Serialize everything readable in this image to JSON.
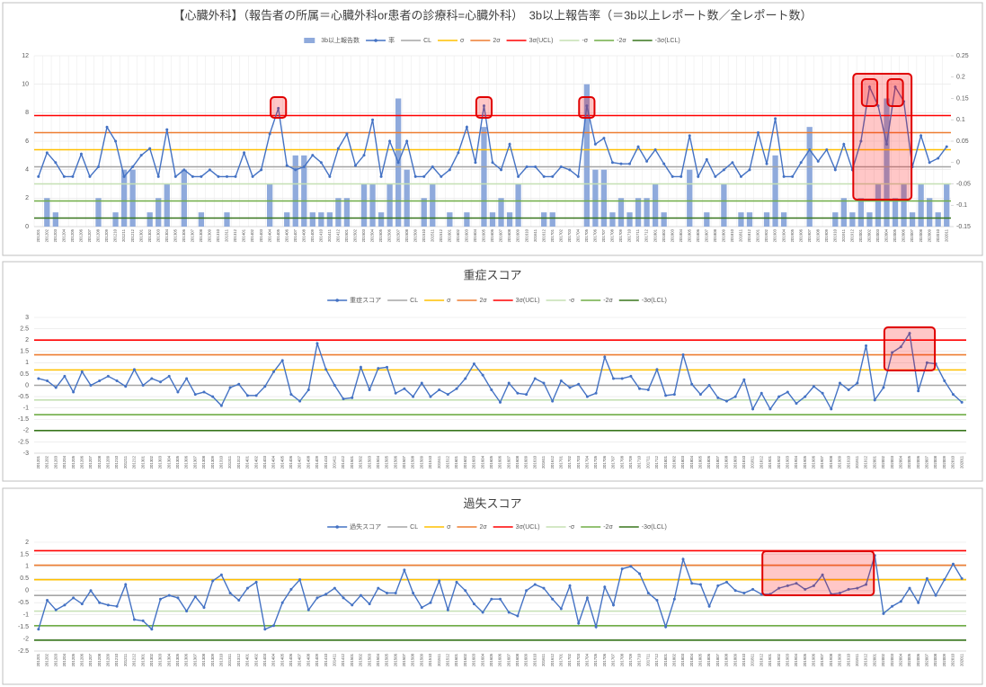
{
  "chart_data": [
    {
      "type": "bar-line",
      "title": "【心臓外科】（報告者の所属＝心臓外科or患者の診療科=心臓外科）　3b以上報告率（＝3b以上レポート数／全レポート数）",
      "categories": [
        "201201",
        "201202",
        "201203",
        "201204",
        "201205",
        "201206",
        "201207",
        "201208",
        "201209",
        "201210",
        "201211",
        "201212",
        "201301",
        "201302",
        "201303",
        "201304",
        "201305",
        "201306",
        "201307",
        "201308",
        "201309",
        "201310",
        "201311",
        "201312",
        "201401",
        "201402",
        "201403",
        "201404",
        "201405",
        "201406",
        "201407",
        "201408",
        "201409",
        "201410",
        "201411",
        "201412",
        "201501",
        "201502",
        "201503",
        "201504",
        "201505",
        "201506",
        "201507",
        "201508",
        "201509",
        "201510",
        "201511",
        "201512",
        "201601",
        "201602",
        "201603",
        "201604",
        "201605",
        "201606",
        "201607",
        "201608",
        "201609",
        "201610",
        "201611",
        "201612",
        "201701",
        "201702",
        "201703",
        "201704",
        "201705",
        "201706",
        "201707",
        "201708",
        "201709",
        "201710",
        "201711",
        "201712",
        "201801",
        "201802",
        "201803",
        "201804",
        "201805",
        "201806",
        "201807",
        "201808",
        "201809",
        "201810",
        "201811",
        "201812",
        "201901",
        "201902",
        "201903",
        "201904",
        "201905",
        "201906",
        "201907",
        "201908",
        "201909",
        "201910",
        "201911",
        "201912",
        "202001",
        "202002",
        "202003",
        "202004",
        "202005",
        "202006",
        "202007",
        "202008",
        "202009",
        "202010",
        "202011"
      ],
      "ylim": [
        0,
        12
      ],
      "yticks": [
        0,
        2,
        4,
        6,
        8,
        10,
        12
      ],
      "y2lim": [
        -0.15,
        0.25
      ],
      "y2ticks": [
        -0.15,
        -0.1,
        -0.05,
        0,
        0.05,
        0.1,
        0.15,
        0.2,
        0.25
      ],
      "grid": true,
      "vgrid": true,
      "series": [
        {
          "name": "3b以上報告数",
          "kind": "bar",
          "color": "#8faadc",
          "values": [
            0,
            2,
            1,
            0,
            0,
            0,
            0,
            2,
            0,
            1,
            4,
            4,
            0,
            1,
            2,
            3,
            0,
            4,
            0,
            1,
            0,
            0,
            1,
            0,
            0,
            0,
            0,
            3,
            0,
            1,
            5,
            5,
            1,
            1,
            1,
            2,
            2,
            0,
            3,
            3,
            1,
            3,
            9,
            4,
            0,
            2,
            3,
            0,
            1,
            0,
            1,
            0,
            7,
            1,
            2,
            1,
            3,
            0,
            0,
            1,
            1,
            0,
            0,
            0,
            10,
            4,
            4,
            1,
            2,
            1,
            2,
            2,
            3,
            1,
            0,
            0,
            4,
            0,
            1,
            0,
            3,
            0,
            1,
            1,
            0,
            1,
            5,
            1,
            0,
            0,
            7,
            0,
            0,
            1,
            2,
            1,
            2,
            1,
            3,
            9,
            2,
            3,
            1,
            3,
            2,
            1,
            3
          ]
        },
        {
          "name": "率",
          "kind": "line",
          "axis": "y2",
          "color": "#4472c4",
          "values": [
            -0.033,
            0.023,
            0,
            -0.033,
            -0.033,
            0.02,
            -0.033,
            -0.01,
            0.083,
            0.05,
            -0.033,
            -0.01,
            0.017,
            0.033,
            -0.033,
            0.077,
            -0.033,
            -0.017,
            -0.033,
            -0.033,
            -0.017,
            -0.033,
            -0.033,
            -0.033,
            0.023,
            -0.033,
            -0.017,
            0.067,
            0.127,
            -0.007,
            -0.017,
            -0.01,
            0.017,
            0,
            -0.033,
            0.033,
            0.067,
            -0.007,
            0.017,
            0.1,
            -0.033,
            0.05,
            0,
            0.05,
            -0.033,
            -0.033,
            -0.01,
            -0.033,
            -0.017,
            0.023,
            0.083,
            0,
            0.133,
            0,
            -0.017,
            0.043,
            -0.033,
            -0.01,
            -0.01,
            -0.033,
            -0.033,
            -0.01,
            -0.017,
            -0.033,
            0.133,
            0.043,
            0.057,
            0,
            -0.003,
            -0.003,
            0.037,
            0.003,
            0.03,
            -0.003,
            -0.033,
            -0.033,
            0.063,
            -0.033,
            0.007,
            -0.033,
            -0.017,
            0,
            -0.033,
            -0.017,
            0.07,
            -0.003,
            0.103,
            -0.033,
            -0.033,
            0,
            0.03,
            0.003,
            0.03,
            -0.017,
            0.043,
            -0.017,
            0.05,
            0.177,
            0.133,
            0.043,
            0.177,
            0.143,
            -0.01,
            0.063,
            0,
            0.01,
            0.037
          ]
        }
      ],
      "lines": [
        {
          "name": "CL",
          "color": "#a5a5a5",
          "axis": "y2",
          "value": -0.01
        },
        {
          "name": "σ",
          "color": "#ffc000",
          "axis": "y2",
          "value": 0.03
        },
        {
          "name": "2σ",
          "color": "#ed7d31",
          "axis": "y2",
          "value": 0.07
        },
        {
          "name": "3σ(UCL)",
          "color": "#ff0000",
          "axis": "y2",
          "value": 0.11
        },
        {
          "name": "-σ",
          "color": "#c5e0b4",
          "axis": "y2",
          "value": -0.05
        },
        {
          "name": "-2σ",
          "color": "#70ad47",
          "axis": "y2",
          "value": -0.09
        },
        {
          "name": "-3σ(LCL)",
          "color": "#38761d",
          "axis": "y2",
          "value": -0.13
        }
      ]
    },
    {
      "type": "line",
      "title": "重症スコア",
      "categories": [
        "201201",
        "201202",
        "201203",
        "201204",
        "201205",
        "201206",
        "201207",
        "201208",
        "201209",
        "201210",
        "201211",
        "201212",
        "201301",
        "201302",
        "201303",
        "201304",
        "201305",
        "201306",
        "201307",
        "201308",
        "201309",
        "201310",
        "201311",
        "201312",
        "201401",
        "201402",
        "201403",
        "201404",
        "201405",
        "201406",
        "201407",
        "201408",
        "201409",
        "201410",
        "201411",
        "201412",
        "201501",
        "201502",
        "201503",
        "201504",
        "201505",
        "201506",
        "201507",
        "201508",
        "201509",
        "201510",
        "201511",
        "201512",
        "201601",
        "201602",
        "201603",
        "201604",
        "201605",
        "201606",
        "201607",
        "201608",
        "201609",
        "201610",
        "201611",
        "201612",
        "201701",
        "201702",
        "201703",
        "201704",
        "201705",
        "201706",
        "201707",
        "201708",
        "201709",
        "201710",
        "201711",
        "201712",
        "201801",
        "201802",
        "201803",
        "201804",
        "201805",
        "201806",
        "201807",
        "201808",
        "201809",
        "201810",
        "201811",
        "201812",
        "201901",
        "201902",
        "201903",
        "201904",
        "201905",
        "201906",
        "201907",
        "201908",
        "201909",
        "201910",
        "201911",
        "201912",
        "202001",
        "202002",
        "202003",
        "202004",
        "202005",
        "202006",
        "202007",
        "202008",
        "202009",
        "202010",
        "202011"
      ],
      "ylim": [
        -3,
        3
      ],
      "yticks": [
        -3,
        -2.5,
        -2,
        -1.5,
        -1,
        -0.5,
        0,
        0.5,
        1,
        1.5,
        2,
        2.5,
        3
      ],
      "grid": true,
      "vgrid": false,
      "series": [
        {
          "name": "重症スコア",
          "kind": "line",
          "color": "#4472c4",
          "values": [
            0.3,
            0.2,
            -0.1,
            0.4,
            -0.3,
            0.6,
            0,
            0.2,
            0.4,
            0.2,
            -0.05,
            0.7,
            0,
            0.3,
            0.15,
            0.4,
            -0.3,
            0.3,
            -0.4,
            -0.3,
            -0.5,
            -0.9,
            -0.1,
            0.05,
            -0.45,
            -0.45,
            -0.05,
            0.6,
            1.1,
            -0.4,
            -0.7,
            -0.2,
            1.85,
            0.7,
            0,
            -0.6,
            -0.55,
            0.8,
            -0.2,
            0.75,
            0.8,
            -0.35,
            -0.15,
            -0.5,
            0.1,
            -0.5,
            -0.2,
            -0.4,
            -0.15,
            0.3,
            0.95,
            0.45,
            -0.2,
            -0.75,
            0.1,
            -0.35,
            -0.4,
            0.3,
            0.1,
            -0.7,
            0.2,
            -0.1,
            0.05,
            -0.5,
            -0.35,
            1.25,
            0.3,
            0.3,
            0.4,
            -0.15,
            -0.2,
            0.7,
            -0.45,
            -0.4,
            1.35,
            0.05,
            -0.4,
            0,
            -0.55,
            -0.7,
            -0.5,
            0.25,
            -1.05,
            -0.35,
            -1.05,
            -0.5,
            -0.3,
            -0.8,
            -0.5,
            -0.05,
            -0.35,
            -1.05,
            0.1,
            -0.2,
            0.1,
            1.75,
            -0.65,
            -0.1,
            1.45,
            1.7,
            2.3,
            -0.25,
            1.0,
            0.95,
            0.2,
            -0.4,
            -0.75
          ]
        }
      ],
      "lines": [
        {
          "name": "CL",
          "color": "#a5a5a5",
          "value": 0
        },
        {
          "name": "σ",
          "color": "#ffc000",
          "value": 0.68
        },
        {
          "name": "2σ",
          "color": "#ed7d31",
          "value": 1.35
        },
        {
          "name": "3σ(UCL)",
          "color": "#ff0000",
          "value": 2
        },
        {
          "name": "-σ",
          "color": "#c5e0b4",
          "value": -0.65
        },
        {
          "name": "-2σ",
          "color": "#70ad47",
          "value": -1.3
        },
        {
          "name": "-3σ(LCL)",
          "color": "#38761d",
          "value": -2
        }
      ]
    },
    {
      "type": "line",
      "title": "過失スコア",
      "categories": [
        "201201",
        "201202",
        "201203",
        "201204",
        "201205",
        "201206",
        "201207",
        "201208",
        "201209",
        "201210",
        "201211",
        "201212",
        "201301",
        "201302",
        "201303",
        "201304",
        "201305",
        "201306",
        "201307",
        "201308",
        "201309",
        "201310",
        "201311",
        "201312",
        "201401",
        "201402",
        "201403",
        "201404",
        "201405",
        "201406",
        "201407",
        "201408",
        "201409",
        "201410",
        "201411",
        "201412",
        "201501",
        "201502",
        "201503",
        "201504",
        "201505",
        "201506",
        "201507",
        "201508",
        "201509",
        "201510",
        "201511",
        "201512",
        "201601",
        "201602",
        "201603",
        "201604",
        "201605",
        "201606",
        "201607",
        "201608",
        "201609",
        "201610",
        "201611",
        "201612",
        "201701",
        "201702",
        "201703",
        "201704",
        "201705",
        "201706",
        "201707",
        "201708",
        "201709",
        "201710",
        "201711",
        "201712",
        "201801",
        "201802",
        "201803",
        "201804",
        "201805",
        "201806",
        "201807",
        "201808",
        "201809",
        "201810",
        "201811",
        "201812",
        "201901",
        "201902",
        "201903",
        "201904",
        "201905",
        "201906",
        "201907",
        "201908",
        "201909",
        "201910",
        "201911",
        "201912",
        "202001",
        "202002",
        "202003",
        "202004",
        "202005",
        "202006",
        "202007",
        "202008",
        "202009",
        "202010",
        "202011"
      ],
      "ylim": [
        -2.5,
        2
      ],
      "yticks": [
        -2.5,
        -2,
        -1.5,
        -1,
        -0.5,
        0,
        0.5,
        1,
        1.5,
        2
      ],
      "grid": true,
      "vgrid": false,
      "series": [
        {
          "name": "過失スコア",
          "kind": "line",
          "color": "#4472c4",
          "values": [
            -1.6,
            -0.4,
            -0.8,
            -0.6,
            -0.3,
            -0.55,
            0,
            -0.5,
            -0.6,
            -0.65,
            0.25,
            -1.2,
            -1.25,
            -1.6,
            -0.35,
            -0.2,
            -0.3,
            -0.85,
            -0.25,
            -0.7,
            0.4,
            0.65,
            -0.1,
            -0.4,
            0.1,
            0.35,
            -1.6,
            -1.45,
            -0.5,
            0.05,
            0.45,
            -0.8,
            -0.3,
            -0.15,
            0.1,
            -0.3,
            -0.6,
            -0.2,
            -0.55,
            0.1,
            -0.1,
            -0.1,
            0.85,
            -0.1,
            -0.7,
            -0.5,
            0.4,
            -0.8,
            0.35,
            0,
            -0.55,
            -0.9,
            -0.35,
            -0.35,
            -0.9,
            -1.05,
            0,
            0.25,
            0.1,
            -0.35,
            -0.75,
            0.2,
            -1.35,
            -0.3,
            -1.5,
            0.15,
            -0.6,
            0.9,
            1.0,
            0.7,
            -0.1,
            -0.4,
            -1.5,
            -0.35,
            1.3,
            0.3,
            0.25,
            -0.65,
            0.2,
            0.35,
            0,
            -0.1,
            0.05,
            -0.15,
            -0.15,
            0.1,
            0.2,
            0.3,
            0.05,
            0.2,
            0.65,
            -0.15,
            -0.1,
            0.05,
            0.1,
            0.25,
            1.45,
            -0.95,
            -0.65,
            -0.45,
            0.1,
            -0.5,
            0.5,
            -0.2,
            0.45,
            1.1,
            0.5
          ]
        }
      ],
      "lines": [
        {
          "name": "CL",
          "color": "#a5a5a5",
          "value": -0.2
        },
        {
          "name": "σ",
          "color": "#ffc000",
          "value": 0.45
        },
        {
          "name": "2σ",
          "color": "#ed7d31",
          "value": 1.05
        },
        {
          "name": "3σ(UCL)",
          "color": "#ff0000",
          "value": 1.65
        },
        {
          "name": "-σ",
          "color": "#c5e0b4",
          "value": -0.85
        },
        {
          "name": "-2σ",
          "color": "#70ad47",
          "value": -1.45
        },
        {
          "name": "-3σ(LCL)",
          "color": "#38761d",
          "value": -2.05
        }
      ]
    }
  ]
}
